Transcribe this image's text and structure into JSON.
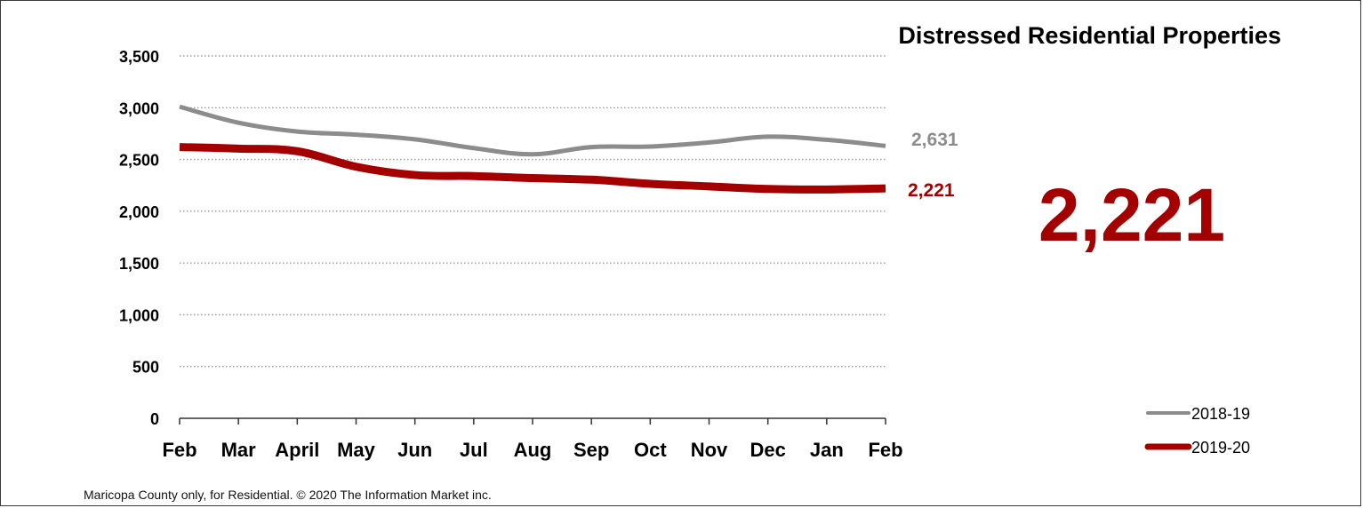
{
  "chart_data": {
    "type": "line",
    "title": "Distressed Residential Properties",
    "categories": [
      "Feb",
      "Mar",
      "April",
      "May",
      "Jun",
      "Jul",
      "Aug",
      "Sep",
      "Oct",
      "Nov",
      "Dec",
      "Jan",
      "Feb"
    ],
    "yticks": [
      "0",
      "500",
      "1,000",
      "1,500",
      "2,000",
      "2,500",
      "3,000",
      "3,500"
    ],
    "ylim": [
      0,
      3500
    ],
    "grid": true,
    "legend_position": "bottom-right",
    "series": [
      {
        "name": "2018-19",
        "color": "#8c8c8c",
        "values": [
          3010,
          2855,
          2770,
          2740,
          2695,
          2610,
          2550,
          2620,
          2625,
          2665,
          2720,
          2690,
          2631
        ],
        "end_label": "2,631"
      },
      {
        "name": "2019-20",
        "color": "#a50000",
        "values": [
          2620,
          2605,
          2580,
          2430,
          2350,
          2340,
          2320,
          2305,
          2265,
          2240,
          2215,
          2210,
          2221
        ],
        "end_label": "2,221"
      }
    ],
    "highlight": {
      "value": "2,221",
      "color": "#a50000"
    },
    "footer": "Maricopa County only, for Residential. © 2020 The Information Market inc."
  }
}
